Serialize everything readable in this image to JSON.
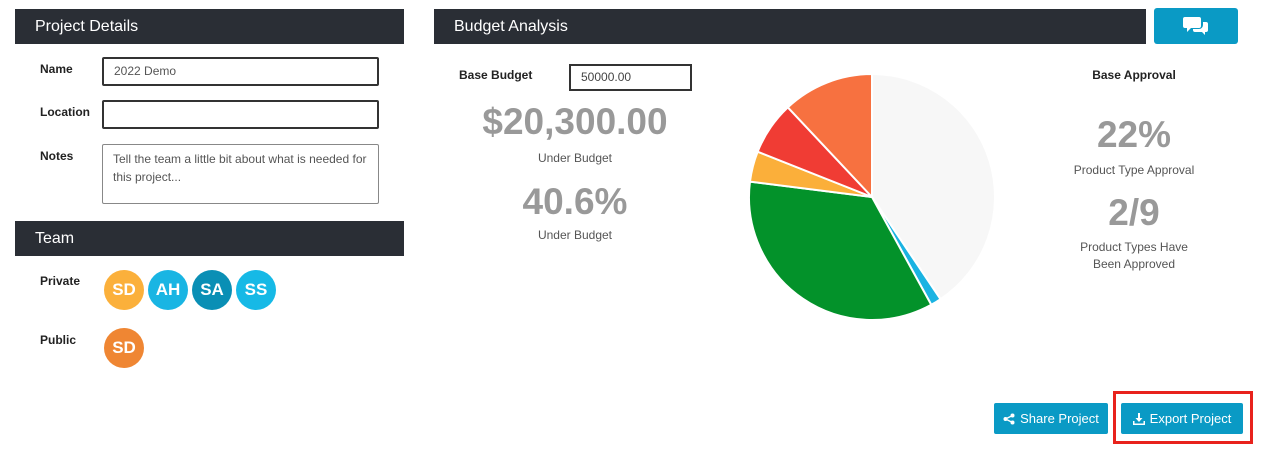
{
  "project_panel": {
    "title": "Project Details",
    "name_label": "Name",
    "name_value": "2022 Demo",
    "location_label": "Location",
    "location_value": "",
    "notes_label": "Notes",
    "notes_value": "Tell the team a little bit about what is needed for this project..."
  },
  "team_panel": {
    "title": "Team",
    "private_label": "Private",
    "public_label": "Public",
    "private_members": [
      {
        "initials": "SD",
        "color": "#fbb03b"
      },
      {
        "initials": "AH",
        "color": "#19b5e3"
      },
      {
        "initials": "SA",
        "color": "#0a8fb5"
      },
      {
        "initials": "SS",
        "color": "#16b9e6"
      }
    ],
    "public_members": [
      {
        "initials": "SD",
        "color": "#ef8633"
      }
    ]
  },
  "budget_panel": {
    "title": "Budget Analysis",
    "base_budget_label": "Base Budget",
    "base_budget_value": "50000.00",
    "under_amount": "$20,300.00",
    "under_amount_caption": "Under Budget",
    "under_percent": "40.6%",
    "under_percent_caption": "Under Budget",
    "base_approval_label": "Base Approval",
    "approval_percent": "22%",
    "approval_percent_caption": "Product Type Approval",
    "approved_ratio": "2/9",
    "approved_ratio_caption_1": "Product Types Have",
    "approved_ratio_caption_2": "Been Approved"
  },
  "chart_data": {
    "type": "pie",
    "slices": [
      {
        "value": 40.6,
        "color": "#f7f7f7"
      },
      {
        "value": 1.4,
        "color": "#1ab3e2"
      },
      {
        "value": 35.0,
        "color": "#03922a"
      },
      {
        "value": 4.0,
        "color": "#fbaf3a"
      },
      {
        "value": 7.0,
        "color": "#f03c34"
      },
      {
        "value": 12.0,
        "color": "#f77140"
      }
    ]
  },
  "actions": {
    "share_label": "Share Project",
    "export_label": "Export Project",
    "share_icon": "share-icon",
    "export_icon": "download-icon"
  },
  "colors": {
    "header_bg": "#2a2e35",
    "accent": "#0a9ac5",
    "highlight": "#e8221c"
  }
}
